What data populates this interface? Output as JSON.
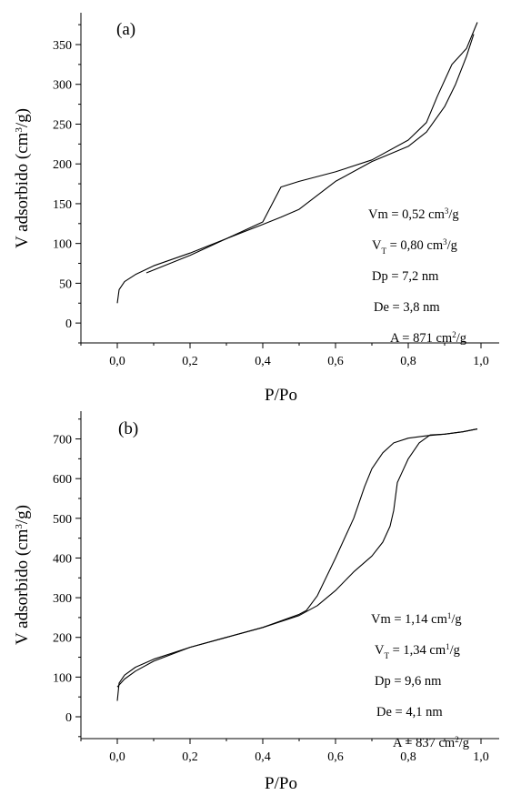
{
  "chart_data": [
    {
      "type": "line",
      "panel_label": "(a)",
      "xlabel": "P/Po",
      "ylabel_main": "V adsorbido (cm",
      "ylabel_sup": "3",
      "ylabel_tail": "/g)",
      "xlim": [
        -0.1,
        1.05
      ],
      "ylim": [
        -25,
        390
      ],
      "x_ticks": [
        0.0,
        0.2,
        0.4,
        0.6,
        0.8,
        1.0
      ],
      "x_tick_labels": [
        "0,0",
        "0,2",
        "0,4",
        "0,6",
        "0,8",
        "1,0"
      ],
      "y_ticks": [
        0,
        50,
        100,
        150,
        200,
        250,
        300,
        350
      ],
      "y_tick_labels": [
        "0",
        "50",
        "100",
        "150",
        "200",
        "250",
        "300",
        "350"
      ],
      "series": [
        {
          "role": "adsorption",
          "x": [
            0.0,
            0.005,
            0.02,
            0.05,
            0.1,
            0.2,
            0.3,
            0.4,
            0.45,
            0.5,
            0.6,
            0.7,
            0.8,
            0.85,
            0.9,
            0.93,
            0.96,
            0.98
          ],
          "y": [
            25,
            42,
            52,
            61,
            72,
            88,
            106,
            124,
            133,
            143,
            178,
            203,
            222,
            240,
            272,
            300,
            335,
            363
          ]
        },
        {
          "role": "desorption",
          "x": [
            0.08,
            0.2,
            0.3,
            0.4,
            0.45,
            0.5,
            0.6,
            0.7,
            0.8,
            0.85,
            0.88,
            0.92,
            0.96,
            0.99
          ],
          "y": [
            63,
            85,
            106,
            127,
            171,
            178,
            190,
            205,
            230,
            252,
            285,
            325,
            345,
            378
          ]
        }
      ],
      "annotations": [
        {
          "pre": "Vm = 0,52 cm",
          "sup": "3",
          "post": "/g"
        },
        {
          "pre": "V",
          "sub": "T",
          "mid": " = 0,80 cm",
          "sup": "3",
          "post": "/g"
        },
        {
          "pre": "Dp = 7,2 nm"
        },
        {
          "pre": "De = 3,8 nm"
        },
        {
          "pre": "A = 871 cm",
          "sup": "2",
          "post": "/g"
        }
      ]
    },
    {
      "type": "line",
      "panel_label": "(b)",
      "xlabel": "P/Po",
      "ylabel_main": "V adsorbido (cm",
      "ylabel_sup": "3",
      "ylabel_tail": "/g)",
      "xlim": [
        -0.1,
        1.05
      ],
      "ylim": [
        -55,
        770
      ],
      "x_ticks": [
        0.0,
        0.2,
        0.4,
        0.6,
        0.8,
        1.0
      ],
      "x_tick_labels": [
        "0,0",
        "0,2",
        "0,4",
        "0,6",
        "0,8",
        "1,0"
      ],
      "y_ticks": [
        0,
        100,
        200,
        300,
        400,
        500,
        600,
        700
      ],
      "y_tick_labels": [
        "0",
        "100",
        "200",
        "300",
        "400",
        "500",
        "600",
        "700"
      ],
      "series": [
        {
          "role": "adsorption",
          "x": [
            0.0,
            0.005,
            0.02,
            0.05,
            0.1,
            0.2,
            0.3,
            0.4,
            0.5,
            0.55,
            0.6,
            0.65,
            0.7,
            0.73,
            0.75,
            0.76,
            0.77,
            0.78,
            0.8,
            0.83,
            0.86,
            0.9,
            0.95,
            0.99
          ],
          "y": [
            40,
            85,
            105,
            125,
            145,
            175,
            200,
            225,
            255,
            280,
            318,
            365,
            405,
            440,
            480,
            520,
            590,
            610,
            650,
            690,
            710,
            712,
            718,
            725
          ]
        },
        {
          "role": "desorption",
          "x": [
            0.0,
            0.02,
            0.05,
            0.1,
            0.2,
            0.3,
            0.4,
            0.5,
            0.52,
            0.55,
            0.6,
            0.65,
            0.68,
            0.7,
            0.73,
            0.76,
            0.8,
            0.85,
            0.9,
            0.95,
            0.99
          ],
          "y": [
            75,
            95,
            115,
            140,
            175,
            200,
            225,
            258,
            268,
            305,
            400,
            500,
            580,
            625,
            665,
            690,
            702,
            708,
            712,
            718,
            725
          ]
        }
      ],
      "annotations": [
        {
          "pre": "Vm = 1,14 cm",
          "sup": "1",
          "post": "/g"
        },
        {
          "pre": "V",
          "sub": "T",
          "mid": " = 1,34 cm",
          "sup": "1",
          "post": "/g"
        },
        {
          "pre": "Dp = 9,6 nm"
        },
        {
          "pre": "De = 4,1 nm"
        },
        {
          "pre": "A = 837 cm",
          "sup": "2",
          "post": "/g"
        }
      ]
    }
  ]
}
